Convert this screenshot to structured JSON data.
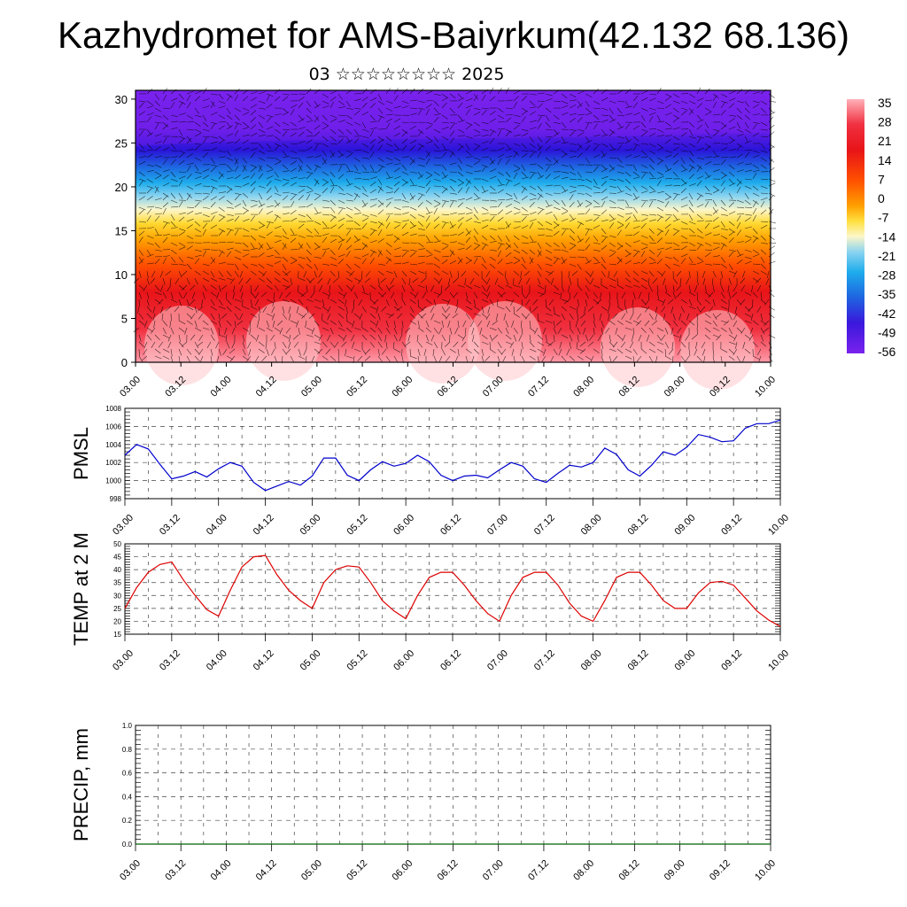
{
  "header": {
    "title": "Kazhydromet for AMS-Baiyrkum(42.132 68.136)",
    "subtitle": "03 ☆☆☆☆☆☆☆☆ 2025"
  },
  "time_ticks": [
    "03.00",
    "03.12",
    "04.00",
    "04.12",
    "05.00",
    "05.12",
    "06.00",
    "06.12",
    "07.00",
    "07.12",
    "08.00",
    "08.12",
    "09.00",
    "09.12",
    "10.00"
  ],
  "chart_data": [
    {
      "type": "heatmap",
      "name": "cross-section",
      "yticks": [
        0,
        5,
        10,
        15,
        20,
        25,
        30
      ],
      "ylim": [
        0,
        31
      ],
      "colorbar_labels": [
        "35",
        "28",
        "21",
        "14",
        "7",
        "0",
        "-7",
        "-14",
        "-21",
        "-28",
        "-35",
        "-42",
        "-49",
        "-56"
      ],
      "colors": [
        "#ff9aa8",
        "#e8141c",
        "#ff4400",
        "#ffa000",
        "#ffdd30",
        "#fbf8d0",
        "#64c4ec",
        "#1e64e0",
        "#2a14d8",
        "#7020ec"
      ]
    },
    {
      "type": "line",
      "ylabel": "PMSL",
      "ylim": [
        998,
        1008
      ],
      "yticks": [
        998,
        1000,
        1002,
        1004,
        1006,
        1008
      ],
      "color": "#0000cc",
      "x": [
        0,
        3,
        6,
        9,
        12,
        15,
        18,
        21,
        24,
        27,
        30,
        33,
        36,
        39,
        42,
        45,
        48,
        51,
        54,
        57,
        60,
        63,
        66,
        69,
        72,
        75,
        78,
        81,
        84,
        87,
        90,
        93,
        96,
        99,
        102,
        105,
        108,
        111,
        114,
        117,
        120,
        123,
        126,
        129,
        132,
        135,
        138,
        141,
        144,
        147,
        150,
        153,
        156,
        159,
        162,
        165,
        168
      ],
      "values": [
        1002.8,
        1004.0,
        1003.5,
        1001.8,
        1000.2,
        1000.5,
        1001.0,
        1000.4,
        1001.3,
        1002.0,
        1001.6,
        999.8,
        998.9,
        999.4,
        999.9,
        999.5,
        1000.5,
        1002.5,
        1002.5,
        1000.6,
        1000.0,
        1001.2,
        1002.1,
        1001.6,
        1001.9,
        1002.8,
        1002.1,
        1000.6,
        1000.0,
        1000.5,
        1000.6,
        1000.3,
        1001.2,
        1002.0,
        1001.6,
        1000.2,
        999.8,
        1000.8,
        1001.7,
        1001.5,
        1002.0,
        1003.6,
        1002.9,
        1001.2,
        1000.5,
        1001.7,
        1003.2,
        1002.8,
        1003.7,
        1005.1,
        1004.8,
        1004.3,
        1004.4,
        1005.8,
        1006.3,
        1006.3,
        1006.7
      ]
    },
    {
      "type": "line",
      "ylabel": "TEMP at 2 M",
      "ylim": [
        15,
        50
      ],
      "yticks": [
        15,
        20,
        25,
        30,
        35,
        40,
        45,
        50
      ],
      "color": "#dd0000",
      "x": [
        0,
        3,
        6,
        9,
        12,
        15,
        18,
        21,
        24,
        27,
        30,
        33,
        36,
        39,
        42,
        45,
        48,
        51,
        54,
        57,
        60,
        63,
        66,
        69,
        72,
        75,
        78,
        81,
        84,
        87,
        90,
        93,
        96,
        99,
        102,
        105,
        108,
        111,
        114,
        117,
        120,
        123,
        126,
        129,
        132,
        135,
        138,
        141,
        144,
        147,
        150,
        153,
        156,
        159,
        162,
        165,
        168
      ],
      "values": [
        25,
        33,
        39,
        42,
        43,
        36,
        30,
        24.5,
        22,
        32,
        41,
        45,
        45.5,
        38,
        32,
        28,
        25,
        35,
        40,
        41.5,
        41,
        35,
        28,
        24,
        21,
        30,
        37,
        39,
        39,
        34,
        28,
        23,
        20,
        30,
        37,
        39,
        39,
        34,
        27,
        22,
        20,
        28,
        37,
        39,
        39,
        34,
        28,
        25,
        25,
        31,
        35,
        35.5,
        34,
        29,
        24,
        20.5,
        18
      ]
    },
    {
      "type": "line",
      "ylabel": "PRECIP, mm",
      "ylim": [
        0,
        1
      ],
      "yticks": [
        "0.0",
        "0.2",
        "0.4",
        "0.6",
        "0.8",
        "1.0"
      ],
      "color": "#006000",
      "x": [
        0,
        168
      ],
      "values": [
        0,
        0
      ]
    }
  ]
}
